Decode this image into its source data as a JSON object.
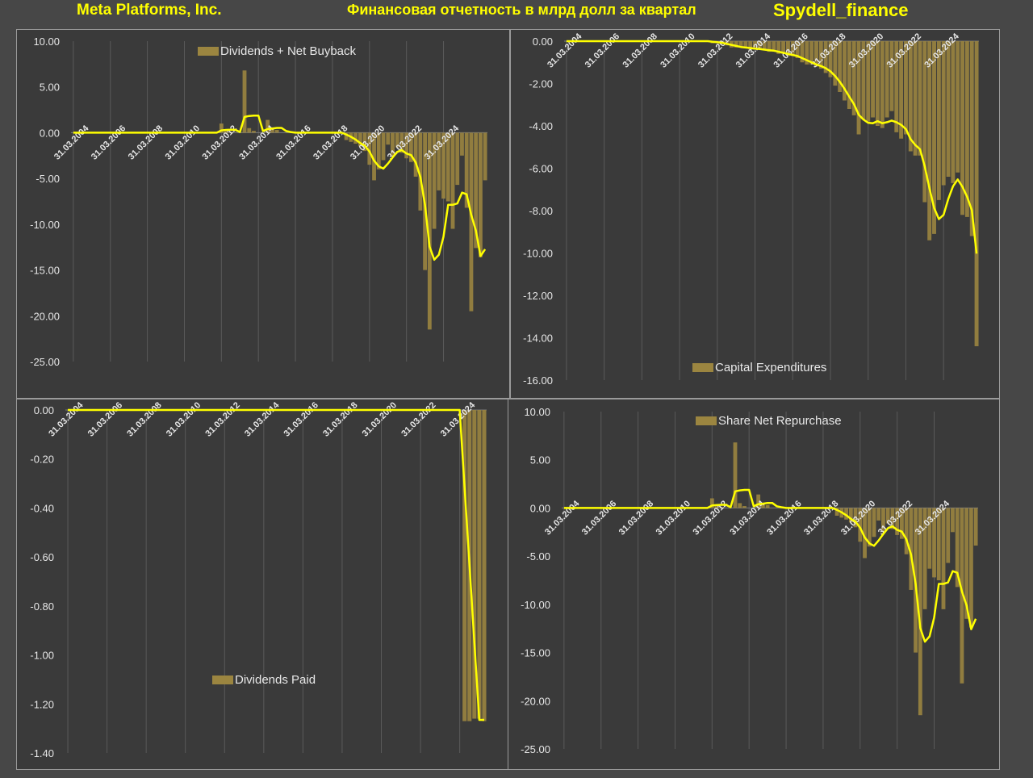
{
  "header": {
    "company": "Meta Platforms, Inc.",
    "subtitle": "Финансовая отчетность в млрд долл за квартал",
    "brand": "Spydell_finance"
  },
  "colors": {
    "bar": "#9b8540",
    "line": "#ffff00",
    "background": "#3a3a3a",
    "grid": "#5a5a5a",
    "text": "#e6e6e6"
  },
  "chart_data": [
    {
      "type": "bar",
      "series": [
        {
          "name": "Dividends + Net Buyback",
          "values": [
            0,
            0,
            0,
            0,
            0,
            0,
            0,
            0,
            0,
            0,
            0,
            0,
            0,
            0,
            0,
            0,
            0,
            0,
            0,
            0,
            0,
            0,
            0,
            0,
            0,
            0,
            0,
            0,
            0,
            0,
            0,
            0,
            1.0,
            0.2,
            0.1,
            0,
            0,
            6.8,
            0.5,
            0.2,
            0,
            0,
            1.4,
            0.4,
            0.3,
            0,
            0,
            0,
            0,
            0,
            0,
            0,
            0,
            0,
            0,
            0,
            0,
            0,
            0,
            -0.8,
            -1.0,
            -1.2,
            -1.5,
            -2.0,
            -3.5,
            -5.2,
            -4.0,
            -3.0,
            -1.3,
            -2.5,
            -1.6,
            -2.2,
            -2.8,
            -3.2,
            -4.8,
            -8.5,
            -15.0,
            -21.5,
            -10.5,
            -6.3,
            -7.2,
            -7.5,
            -10.5,
            -5.7,
            -2.5,
            -8.2,
            -19.5,
            -12.6,
            -13.6,
            -5.2
          ]
        }
      ],
      "x_tick_labels": [
        "31.03.2004",
        "31.03.2006",
        "31.03.2008",
        "31.03.2010",
        "31.03.2012",
        "31.03.2014",
        "31.03.2016",
        "31.03.2018",
        "31.03.2020",
        "31.03.2022",
        "31.03.2024"
      ],
      "y_tick_labels": [
        "10.00",
        "5.00",
        "0.00",
        "-5.00",
        "-10.00",
        "-15.00",
        "-20.00",
        "-25.00"
      ],
      "ylim": [
        -25,
        10
      ],
      "legend": "top-center",
      "grid": true
    },
    {
      "type": "bar",
      "series": [
        {
          "name": "Capital Expenditures",
          "values": [
            0,
            0,
            0,
            0,
            0,
            0,
            0,
            0,
            0,
            0,
            0,
            0,
            0,
            0,
            0,
            0,
            0,
            0,
            0,
            0,
            0,
            0,
            0,
            0,
            0,
            0,
            0,
            0,
            0,
            0,
            0,
            -0.1,
            -0.1,
            -0.1,
            -0.2,
            -0.3,
            -0.3,
            -0.3,
            -0.3,
            -0.4,
            -0.4,
            -0.4,
            -0.4,
            -0.5,
            -0.5,
            -0.6,
            -0.6,
            -0.7,
            -0.7,
            -0.8,
            -1.0,
            -1.1,
            -1.1,
            -1.2,
            -1.3,
            -1.5,
            -1.7,
            -2.1,
            -2.4,
            -2.8,
            -3.2,
            -3.5,
            -4.4,
            -3.7,
            -3.8,
            -3.6,
            -4.0,
            -4.1,
            -3.6,
            -3.3,
            -4.3,
            -4.6,
            -4.4,
            -5.2,
            -5.4,
            -5.4,
            -7.6,
            -9.4,
            -9.1,
            -7.5,
            -6.8,
            -6.4,
            -6.7,
            -6.2,
            -8.2,
            -8.3,
            -9.2,
            -14.4
          ]
        }
      ],
      "x_tick_labels": [
        "31.03.2004",
        "31.03.2006",
        "31.03.2008",
        "31.03.2010",
        "31.03.2012",
        "31.03.2014",
        "31.03.2016",
        "31.03.2018",
        "31.03.2020",
        "31.03.2022",
        "31.03.2024"
      ],
      "y_tick_labels": [
        "0.00",
        "-2.00",
        "-4.00",
        "-6.00",
        "-8.00",
        "-10.00",
        "-12.00",
        "-14.00",
        "-16.00"
      ],
      "ylim": [
        -16,
        0
      ],
      "legend": "bottom-center",
      "grid": true
    },
    {
      "type": "bar",
      "series": [
        {
          "name": "Dividends Paid",
          "values": [
            0,
            0,
            0,
            0,
            0,
            0,
            0,
            0,
            0,
            0,
            0,
            0,
            0,
            0,
            0,
            0,
            0,
            0,
            0,
            0,
            0,
            0,
            0,
            0,
            0,
            0,
            0,
            0,
            0,
            0,
            0,
            0,
            0,
            0,
            0,
            0,
            0,
            0,
            0,
            0,
            0,
            0,
            0,
            0,
            0,
            0,
            0,
            0,
            0,
            0,
            0,
            0,
            0,
            0,
            0,
            0,
            0,
            0,
            0,
            0,
            0,
            0,
            0,
            0,
            0,
            0,
            0,
            0,
            0,
            0,
            0,
            0,
            0,
            0,
            0,
            0,
            0,
            0,
            0,
            0,
            0,
            -1.27,
            -1.27,
            -1.26,
            -1.26,
            -1.27
          ]
        }
      ],
      "x_tick_labels": [
        "31.03.2004",
        "31.03.2006",
        "31.03.2008",
        "31.03.2010",
        "31.03.2012",
        "31.03.2014",
        "31.03.2016",
        "31.03.2018",
        "31.03.2020",
        "31.03.2022",
        "31.03.2024"
      ],
      "y_tick_labels": [
        "0.00",
        "-0.20",
        "-0.40",
        "-0.60",
        "-0.80",
        "-1.00",
        "-1.20",
        "-1.40"
      ],
      "ylim": [
        -1.4,
        0
      ],
      "legend": "center",
      "grid": true
    },
    {
      "type": "bar",
      "series": [
        {
          "name": "Share Net Repurchase",
          "values": [
            0,
            0,
            0,
            0,
            0,
            0,
            0,
            0,
            0,
            0,
            0,
            0,
            0,
            0,
            0,
            0,
            0,
            0,
            0,
            0,
            0,
            0,
            0,
            0,
            0,
            0,
            0,
            0,
            0,
            0,
            0,
            0,
            1.0,
            0.2,
            0.1,
            0,
            0,
            6.8,
            0.5,
            0.2,
            0,
            0,
            1.4,
            0.4,
            0.3,
            0,
            0,
            0,
            0,
            0,
            0,
            0,
            0,
            0,
            0,
            0,
            0,
            0,
            0,
            -0.8,
            -1.0,
            -1.2,
            -1.5,
            -2.0,
            -3.5,
            -5.2,
            -4.0,
            -3.0,
            -1.3,
            -2.5,
            -1.6,
            -2.2,
            -2.8,
            -3.2,
            -4.8,
            -8.5,
            -15.0,
            -21.5,
            -10.5,
            -6.3,
            -7.2,
            -7.5,
            -10.5,
            -5.7,
            -2.5,
            -8.2,
            -18.2,
            -11.5,
            -12.4,
            -3.9
          ]
        }
      ],
      "x_tick_labels": [
        "31.03.2004",
        "31.03.2006",
        "31.03.2008",
        "31.03.2010",
        "31.03.2012",
        "31.03.2014",
        "31.03.2016",
        "31.03.2018",
        "31.03.2020",
        "31.03.2022",
        "31.03.2024"
      ],
      "y_tick_labels": [
        "10.00",
        "5.00",
        "0.00",
        "-5.00",
        "-10.00",
        "-15.00",
        "-20.00",
        "-25.00"
      ],
      "ylim": [
        -25,
        10
      ],
      "legend": "top-center",
      "grid": true
    }
  ]
}
